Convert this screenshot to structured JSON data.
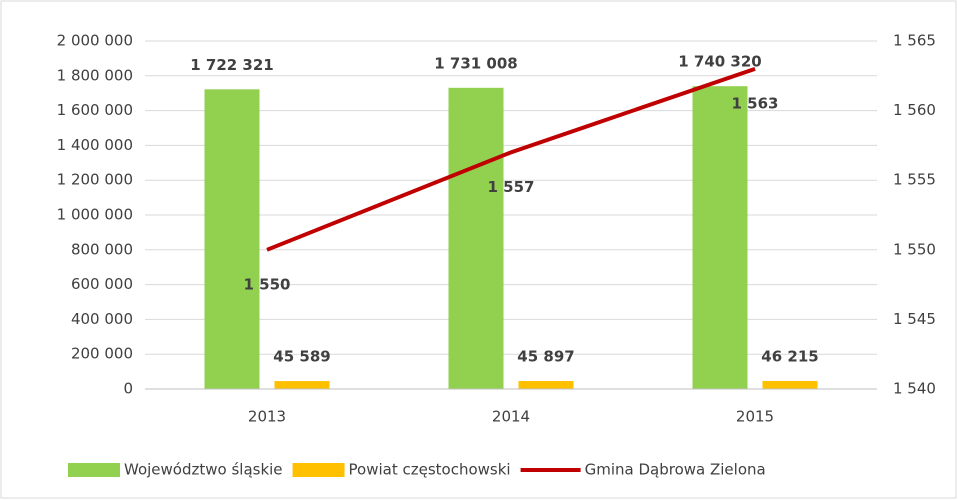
{
  "chart_data": {
    "type": "bar_line",
    "categories": [
      "2013",
      "2014",
      "2015"
    ],
    "series": [
      {
        "name": "Województwo śląskie",
        "type": "bar",
        "color": "#92d050",
        "values": [
          1722321,
          1731008,
          1740320
        ],
        "value_labels": [
          "1 722 321",
          "1 731 008",
          "1 740 320"
        ]
      },
      {
        "name": "Powiat częstochowski",
        "type": "bar",
        "color": "#ffc000",
        "values": [
          45589,
          45897,
          46215
        ],
        "value_labels": [
          "45 589",
          "45 897",
          "46 215"
        ]
      },
      {
        "name": "Gmina Dąbrowa Zielona",
        "type": "line",
        "axis": "y2",
        "color": "#c00000",
        "values": [
          1550,
          1557,
          1563
        ],
        "value_labels": [
          "1 550",
          "1 557",
          "1 563"
        ]
      }
    ],
    "ylim": [
      0,
      2000000
    ],
    "yticks": [
      0,
      {
        "value": 200000,
        "label": "200 000"
      },
      {
        "value": 400000,
        "label": "400 000"
      },
      {
        "value": 600000,
        "label": "600 000"
      },
      {
        "value": 800000,
        "label": "800 000"
      },
      {
        "value": 1000000,
        "label": "1 000 000"
      },
      {
        "value": 1200000,
        "label": "1 200 000"
      },
      {
        "value": 1400000,
        "label": "1 400 000"
      },
      {
        "value": 1600000,
        "label": "1 600 000"
      },
      {
        "value": 1800000,
        "label": "1 800 000"
      },
      {
        "value": 2000000,
        "label": "2 000 000"
      }
    ],
    "y2lim": [
      1540,
      1565
    ],
    "y2ticks": [
      {
        "value": 1540,
        "label": "1 540"
      },
      {
        "value": 1545,
        "label": "1 545"
      },
      {
        "value": 1550,
        "label": "1 550"
      },
      {
        "value": 1555,
        "label": "1 555"
      },
      {
        "value": 1560,
        "label": "1 560"
      },
      {
        "value": 1565,
        "label": "1 565"
      }
    ],
    "grid": true,
    "legend": "bottom"
  }
}
